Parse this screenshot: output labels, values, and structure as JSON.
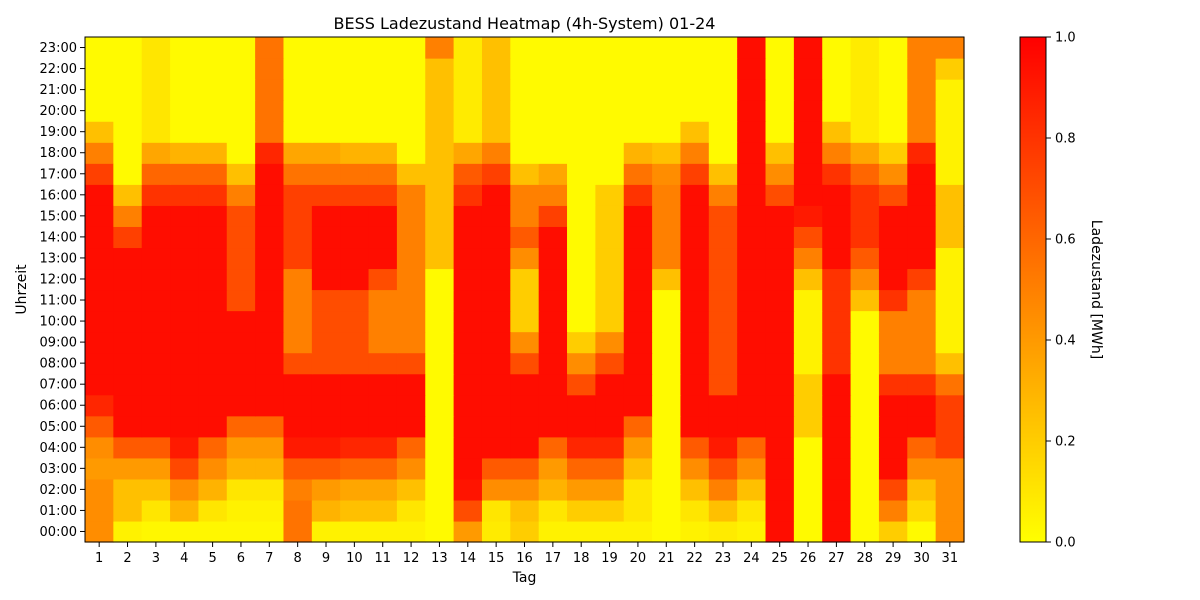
{
  "chart_data": {
    "type": "heatmap",
    "title": "BESS Ladezustand Heatmap (4h-System) 01-24",
    "xlabel": "Tag",
    "ylabel": "Uhrzeit",
    "colorbar_label": "Ladezustand [MWh]",
    "colorbar_ticks": [
      "0.0",
      "0.2",
      "0.4",
      "0.6",
      "0.8",
      "1.0"
    ],
    "vmin": 0.0,
    "vmax": 1.0,
    "colormap": [
      "#ffff00",
      "#ffc000",
      "#ff8000",
      "#ff4000",
      "#ff0000"
    ],
    "x": [
      "1",
      "2",
      "3",
      "4",
      "5",
      "6",
      "7",
      "8",
      "9",
      "10",
      "11",
      "12",
      "13",
      "14",
      "15",
      "16",
      "17",
      "18",
      "19",
      "20",
      "21",
      "22",
      "23",
      "24",
      "25",
      "26",
      "27",
      "28",
      "29",
      "30",
      "31"
    ],
    "y": [
      "00:00",
      "01:00",
      "02:00",
      "03:00",
      "04:00",
      "05:00",
      "06:00",
      "07:00",
      "08:00",
      "09:00",
      "10:00",
      "11:00",
      "12:00",
      "13:00",
      "14:00",
      "15:00",
      "16:00",
      "17:00",
      "18:00",
      "19:00",
      "20:00",
      "21:00",
      "22:00",
      "23:00"
    ],
    "values": [
      [
        0.45,
        0.05,
        0.03,
        0.03,
        0.03,
        0.03,
        0.03,
        0.55,
        0.05,
        0.05,
        0.05,
        0.05,
        0.02,
        0.4,
        0.08,
        0.2,
        0.05,
        0.05,
        0.05,
        0.05,
        0.02,
        0.05,
        0.08,
        0.05,
        0.95,
        0.02,
        0.95,
        0.02,
        0.2,
        0.02,
        0.45
      ],
      [
        0.45,
        0.25,
        0.1,
        0.3,
        0.1,
        0.05,
        0.05,
        0.55,
        0.3,
        0.25,
        0.25,
        0.1,
        0.02,
        0.7,
        0.1,
        0.25,
        0.1,
        0.2,
        0.2,
        0.1,
        0.02,
        0.1,
        0.25,
        0.1,
        0.95,
        0.02,
        0.95,
        0.02,
        0.5,
        0.15,
        0.45
      ],
      [
        0.45,
        0.25,
        0.25,
        0.45,
        0.3,
        0.1,
        0.1,
        0.5,
        0.4,
        0.35,
        0.35,
        0.25,
        0.02,
        0.92,
        0.45,
        0.45,
        0.3,
        0.4,
        0.4,
        0.1,
        0.02,
        0.25,
        0.5,
        0.25,
        0.95,
        0.02,
        0.95,
        0.02,
        0.72,
        0.25,
        0.45
      ],
      [
        0.4,
        0.4,
        0.4,
        0.72,
        0.45,
        0.3,
        0.3,
        0.65,
        0.65,
        0.6,
        0.6,
        0.45,
        0.02,
        0.95,
        0.65,
        0.65,
        0.4,
        0.6,
        0.6,
        0.25,
        0.02,
        0.45,
        0.7,
        0.45,
        0.95,
        0.02,
        0.95,
        0.02,
        0.95,
        0.45,
        0.45
      ],
      [
        0.45,
        0.65,
        0.65,
        0.9,
        0.6,
        0.4,
        0.4,
        0.9,
        0.9,
        0.85,
        0.85,
        0.6,
        0.02,
        0.95,
        0.95,
        0.95,
        0.6,
        0.85,
        0.85,
        0.4,
        0.02,
        0.65,
        0.9,
        0.6,
        0.95,
        0.02,
        0.95,
        0.02,
        0.95,
        0.6,
        0.75
      ],
      [
        0.65,
        0.95,
        0.95,
        0.95,
        0.95,
        0.6,
        0.6,
        0.95,
        0.95,
        0.95,
        0.95,
        0.95,
        0.02,
        0.95,
        0.95,
        0.95,
        0.95,
        0.95,
        0.95,
        0.6,
        0.02,
        0.95,
        0.95,
        0.95,
        0.95,
        0.2,
        0.95,
        0.02,
        0.95,
        0.95,
        0.75
      ],
      [
        0.85,
        0.95,
        0.95,
        0.95,
        0.95,
        0.95,
        0.95,
        0.95,
        0.95,
        0.95,
        0.95,
        0.95,
        0.02,
        0.95,
        0.95,
        0.95,
        0.95,
        0.95,
        0.95,
        0.95,
        0.02,
        0.95,
        0.95,
        0.95,
        0.95,
        0.2,
        0.95,
        0.02,
        0.95,
        0.95,
        0.75
      ],
      [
        0.95,
        0.95,
        0.95,
        0.95,
        0.95,
        0.95,
        0.95,
        0.95,
        0.95,
        0.95,
        0.95,
        0.95,
        0.02,
        0.95,
        0.95,
        0.95,
        0.95,
        0.7,
        0.95,
        0.95,
        0.02,
        0.95,
        0.7,
        0.95,
        0.95,
        0.2,
        0.95,
        0.02,
        0.8,
        0.8,
        0.55
      ],
      [
        0.95,
        0.95,
        0.95,
        0.95,
        0.95,
        0.95,
        0.95,
        0.7,
        0.7,
        0.7,
        0.7,
        0.7,
        0.02,
        0.95,
        0.95,
        0.7,
        0.95,
        0.45,
        0.7,
        0.95,
        0.02,
        0.95,
        0.7,
        0.95,
        0.95,
        0.05,
        0.8,
        0.02,
        0.5,
        0.5,
        0.25
      ],
      [
        0.95,
        0.95,
        0.95,
        0.95,
        0.95,
        0.95,
        0.95,
        0.5,
        0.7,
        0.7,
        0.5,
        0.5,
        0.02,
        0.95,
        0.95,
        0.45,
        0.95,
        0.2,
        0.45,
        0.95,
        0.02,
        0.95,
        0.7,
        0.95,
        0.95,
        0.05,
        0.8,
        0.02,
        0.5,
        0.5,
        0.05
      ],
      [
        0.95,
        0.95,
        0.95,
        0.95,
        0.95,
        0.95,
        0.95,
        0.5,
        0.7,
        0.7,
        0.5,
        0.5,
        0.02,
        0.95,
        0.95,
        0.2,
        0.95,
        0.02,
        0.2,
        0.95,
        0.02,
        0.95,
        0.7,
        0.95,
        0.95,
        0.05,
        0.8,
        0.02,
        0.5,
        0.5,
        0.05
      ],
      [
        0.95,
        0.95,
        0.95,
        0.95,
        0.95,
        0.7,
        0.95,
        0.5,
        0.7,
        0.7,
        0.5,
        0.5,
        0.02,
        0.95,
        0.95,
        0.2,
        0.95,
        0.02,
        0.2,
        0.95,
        0.02,
        0.95,
        0.7,
        0.95,
        0.95,
        0.05,
        0.8,
        0.25,
        0.8,
        0.5,
        0.05
      ],
      [
        0.95,
        0.95,
        0.95,
        0.95,
        0.95,
        0.7,
        0.95,
        0.5,
        0.95,
        0.95,
        0.7,
        0.5,
        0.02,
        0.95,
        0.95,
        0.2,
        0.95,
        0.02,
        0.2,
        0.95,
        0.25,
        0.95,
        0.7,
        0.95,
        0.95,
        0.25,
        0.8,
        0.45,
        0.95,
        0.75,
        0.05
      ],
      [
        0.95,
        0.95,
        0.95,
        0.95,
        0.95,
        0.7,
        0.95,
        0.75,
        0.95,
        0.95,
        0.95,
        0.5,
        0.25,
        0.95,
        0.95,
        0.45,
        0.95,
        0.02,
        0.2,
        0.95,
        0.5,
        0.95,
        0.7,
        0.95,
        0.95,
        0.5,
        0.95,
        0.65,
        0.95,
        0.95,
        0.05
      ],
      [
        0.95,
        0.75,
        0.95,
        0.95,
        0.95,
        0.7,
        0.95,
        0.75,
        0.95,
        0.95,
        0.95,
        0.5,
        0.25,
        0.95,
        0.95,
        0.65,
        0.95,
        0.02,
        0.2,
        0.95,
        0.5,
        0.95,
        0.7,
        0.95,
        0.95,
        0.7,
        0.95,
        0.8,
        0.95,
        0.95,
        0.25
      ],
      [
        0.95,
        0.5,
        0.95,
        0.95,
        0.95,
        0.7,
        0.95,
        0.75,
        0.95,
        0.95,
        0.95,
        0.5,
        0.25,
        0.95,
        0.95,
        0.5,
        0.75,
        0.02,
        0.2,
        0.95,
        0.5,
        0.95,
        0.7,
        0.95,
        0.95,
        0.9,
        0.95,
        0.8,
        0.95,
        0.95,
        0.25
      ],
      [
        0.95,
        0.25,
        0.8,
        0.8,
        0.8,
        0.5,
        0.95,
        0.75,
        0.75,
        0.75,
        0.75,
        0.5,
        0.25,
        0.8,
        0.95,
        0.5,
        0.5,
        0.02,
        0.2,
        0.8,
        0.5,
        0.95,
        0.5,
        0.95,
        0.7,
        0.95,
        0.95,
        0.8,
        0.7,
        0.95,
        0.25
      ],
      [
        0.75,
        0.02,
        0.6,
        0.6,
        0.6,
        0.25,
        0.95,
        0.55,
        0.55,
        0.55,
        0.55,
        0.25,
        0.25,
        0.65,
        0.75,
        0.25,
        0.35,
        0.02,
        0.02,
        0.55,
        0.45,
        0.75,
        0.25,
        0.95,
        0.45,
        0.95,
        0.8,
        0.6,
        0.45,
        0.95,
        0.05
      ],
      [
        0.5,
        0.02,
        0.35,
        0.3,
        0.3,
        0.02,
        0.85,
        0.35,
        0.35,
        0.3,
        0.3,
        0.02,
        0.25,
        0.35,
        0.5,
        0.02,
        0.02,
        0.02,
        0.02,
        0.3,
        0.25,
        0.5,
        0.02,
        0.95,
        0.25,
        0.95,
        0.5,
        0.35,
        0.2,
        0.85,
        0.05
      ],
      [
        0.25,
        0.02,
        0.1,
        0.02,
        0.02,
        0.02,
        0.55,
        0.02,
        0.02,
        0.02,
        0.02,
        0.02,
        0.25,
        0.08,
        0.25,
        0.02,
        0.02,
        0.02,
        0.02,
        0.02,
        0.02,
        0.25,
        0.02,
        0.95,
        0.02,
        0.95,
        0.25,
        0.08,
        0.02,
        0.5,
        0.05
      ],
      [
        0.02,
        0.02,
        0.1,
        0.02,
        0.02,
        0.02,
        0.55,
        0.02,
        0.02,
        0.02,
        0.02,
        0.02,
        0.25,
        0.08,
        0.25,
        0.02,
        0.02,
        0.02,
        0.02,
        0.02,
        0.02,
        0.02,
        0.02,
        0.95,
        0.02,
        0.95,
        0.02,
        0.08,
        0.02,
        0.5,
        0.05
      ],
      [
        0.02,
        0.02,
        0.1,
        0.02,
        0.02,
        0.02,
        0.55,
        0.02,
        0.02,
        0.02,
        0.02,
        0.02,
        0.25,
        0.08,
        0.25,
        0.02,
        0.02,
        0.02,
        0.02,
        0.02,
        0.02,
        0.02,
        0.02,
        0.95,
        0.02,
        0.95,
        0.02,
        0.08,
        0.02,
        0.5,
        0.05
      ],
      [
        0.02,
        0.02,
        0.1,
        0.02,
        0.02,
        0.02,
        0.55,
        0.02,
        0.02,
        0.02,
        0.02,
        0.02,
        0.25,
        0.08,
        0.25,
        0.02,
        0.02,
        0.02,
        0.02,
        0.02,
        0.02,
        0.02,
        0.02,
        0.95,
        0.02,
        0.95,
        0.02,
        0.08,
        0.02,
        0.5,
        0.2
      ],
      [
        0.02,
        0.02,
        0.1,
        0.02,
        0.02,
        0.02,
        0.55,
        0.02,
        0.02,
        0.02,
        0.02,
        0.02,
        0.5,
        0.08,
        0.25,
        0.02,
        0.02,
        0.02,
        0.02,
        0.02,
        0.02,
        0.02,
        0.02,
        0.95,
        0.02,
        0.95,
        0.02,
        0.08,
        0.02,
        0.5,
        0.5
      ]
    ]
  }
}
